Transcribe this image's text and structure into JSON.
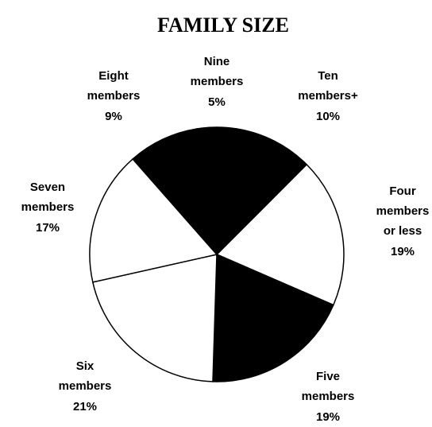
{
  "chart_data": {
    "type": "pie",
    "title": "FAMILY SIZE",
    "categories": [
      "Four members or less",
      "Five members",
      "Six members",
      "Seven members",
      "Eight members",
      "Nine members",
      "Ten members+"
    ],
    "values": [
      19,
      19,
      21,
      17,
      9,
      5,
      10
    ],
    "value_labels": [
      "19%",
      "19%",
      "21%",
      "17%",
      "9%",
      "5%",
      "10%"
    ],
    "colors": [
      "#ffffff",
      "#000000",
      "#ffffff",
      "#ffffff",
      "#000000",
      "#000000",
      "#000000"
    ]
  }
}
